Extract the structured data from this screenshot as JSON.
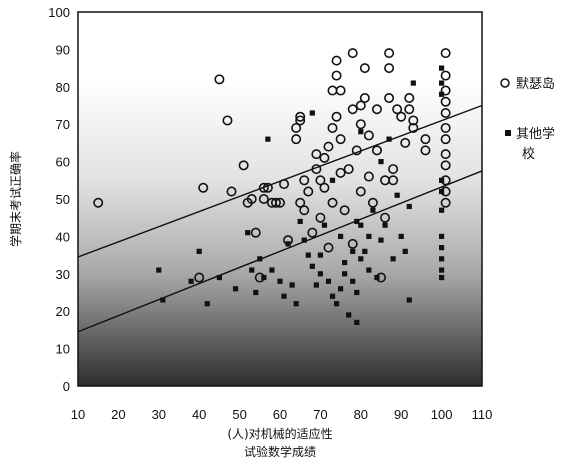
{
  "chart_data": {
    "type": "scatter",
    "xlabel_line1": "(人)对机械的适应性",
    "xlabel_line2": "试验数学成绩",
    "ylabel": "学期末考试正确率",
    "xlim": [
      10,
      110
    ],
    "ylim": [
      0,
      100
    ],
    "xticks": [
      10,
      20,
      30,
      40,
      50,
      60,
      70,
      80,
      90,
      100,
      110
    ],
    "yticks": [
      0,
      10,
      20,
      30,
      40,
      50,
      60,
      70,
      80,
      90,
      100
    ],
    "grid": false,
    "legend_position": "right",
    "series": [
      {
        "name": "默瑟岛",
        "marker": "open-circle",
        "points": [
          [
            15,
            49
          ],
          [
            40,
            29
          ],
          [
            41,
            53
          ],
          [
            45,
            82
          ],
          [
            47,
            71
          ],
          [
            48,
            52
          ],
          [
            51,
            59
          ],
          [
            52,
            49
          ],
          [
            53,
            50
          ],
          [
            54,
            41
          ],
          [
            55,
            29
          ],
          [
            56,
            53
          ],
          [
            56,
            50
          ],
          [
            57,
            53
          ],
          [
            58,
            49
          ],
          [
            59,
            49
          ],
          [
            60,
            49
          ],
          [
            61,
            54
          ],
          [
            62,
            39
          ],
          [
            64,
            69
          ],
          [
            64,
            66
          ],
          [
            65,
            71
          ],
          [
            65,
            72
          ],
          [
            65,
            49
          ],
          [
            66,
            47
          ],
          [
            66,
            55
          ],
          [
            67,
            52
          ],
          [
            68,
            41
          ],
          [
            69,
            62
          ],
          [
            69,
            58
          ],
          [
            70,
            55
          ],
          [
            70,
            45
          ],
          [
            71,
            61
          ],
          [
            71,
            53
          ],
          [
            72,
            64
          ],
          [
            72,
            37
          ],
          [
            73,
            79
          ],
          [
            73,
            69
          ],
          [
            73,
            49
          ],
          [
            74,
            87
          ],
          [
            74,
            83
          ],
          [
            74,
            72
          ],
          [
            75,
            79
          ],
          [
            75,
            66
          ],
          [
            75,
            57
          ],
          [
            76,
            47
          ],
          [
            77,
            58
          ],
          [
            78,
            89
          ],
          [
            78,
            74
          ],
          [
            78,
            38
          ],
          [
            79,
            63
          ],
          [
            80,
            75
          ],
          [
            80,
            70
          ],
          [
            80,
            52
          ],
          [
            81,
            85
          ],
          [
            81,
            77
          ],
          [
            82,
            67
          ],
          [
            82,
            56
          ],
          [
            83,
            49
          ],
          [
            84,
            74
          ],
          [
            84,
            63
          ],
          [
            85,
            29
          ],
          [
            86,
            55
          ],
          [
            86,
            45
          ],
          [
            87,
            89
          ],
          [
            87,
            85
          ],
          [
            87,
            77
          ],
          [
            88,
            58
          ],
          [
            88,
            55
          ],
          [
            89,
            74
          ],
          [
            90,
            72
          ],
          [
            91,
            65
          ],
          [
            92,
            77
          ],
          [
            92,
            74
          ],
          [
            93,
            71
          ],
          [
            93,
            69
          ],
          [
            96,
            66
          ],
          [
            96,
            63
          ],
          [
            101,
            89
          ],
          [
            101,
            83
          ],
          [
            101,
            79
          ],
          [
            101,
            76
          ],
          [
            101,
            73
          ],
          [
            101,
            69
          ],
          [
            101,
            66
          ],
          [
            101,
            62
          ],
          [
            101,
            59
          ],
          [
            101,
            55
          ],
          [
            101,
            52
          ],
          [
            101,
            49
          ]
        ]
      },
      {
        "name": "其他学校",
        "marker": "filled-square",
        "points": [
          [
            30,
            31
          ],
          [
            31,
            23
          ],
          [
            38,
            28
          ],
          [
            40,
            36
          ],
          [
            42,
            22
          ],
          [
            45,
            29
          ],
          [
            49,
            26
          ],
          [
            52,
            41
          ],
          [
            53,
            31
          ],
          [
            54,
            25
          ],
          [
            55,
            34
          ],
          [
            56,
            29
          ],
          [
            57,
            66
          ],
          [
            58,
            31
          ],
          [
            60,
            28
          ],
          [
            61,
            24
          ],
          [
            62,
            38
          ],
          [
            63,
            27
          ],
          [
            64,
            22
          ],
          [
            65,
            44
          ],
          [
            66,
            39
          ],
          [
            67,
            35
          ],
          [
            68,
            32
          ],
          [
            68,
            73
          ],
          [
            69,
            27
          ],
          [
            70,
            30
          ],
          [
            70,
            35
          ],
          [
            71,
            43
          ],
          [
            72,
            28
          ],
          [
            73,
            24
          ],
          [
            73,
            55
          ],
          [
            74,
            22
          ],
          [
            75,
            40
          ],
          [
            75,
            26
          ],
          [
            76,
            30
          ],
          [
            76,
            33
          ],
          [
            77,
            19
          ],
          [
            78,
            36
          ],
          [
            78,
            28
          ],
          [
            79,
            44
          ],
          [
            79,
            25
          ],
          [
            79,
            17
          ],
          [
            80,
            43
          ],
          [
            80,
            34
          ],
          [
            80,
            68
          ],
          [
            81,
            36
          ],
          [
            82,
            40
          ],
          [
            82,
            31
          ],
          [
            83,
            47
          ],
          [
            84,
            29
          ],
          [
            85,
            39
          ],
          [
            85,
            60
          ],
          [
            86,
            43
          ],
          [
            87,
            66
          ],
          [
            88,
            34
          ],
          [
            89,
            51
          ],
          [
            90,
            40
          ],
          [
            91,
            36
          ],
          [
            92,
            23
          ],
          [
            92,
            48
          ],
          [
            93,
            81
          ],
          [
            100,
            85
          ],
          [
            100,
            81
          ],
          [
            100,
            78
          ],
          [
            100,
            55
          ],
          [
            100,
            52
          ],
          [
            100,
            47
          ],
          [
            100,
            40
          ],
          [
            100,
            37
          ],
          [
            100,
            34
          ],
          [
            100,
            31
          ],
          [
            100,
            29
          ]
        ]
      }
    ],
    "trend_lines": [
      {
        "from": [
          10,
          34.5
        ],
        "to": [
          110,
          75
        ]
      },
      {
        "from": [
          10,
          14.5
        ],
        "to": [
          110,
          57.5
        ]
      }
    ]
  }
}
